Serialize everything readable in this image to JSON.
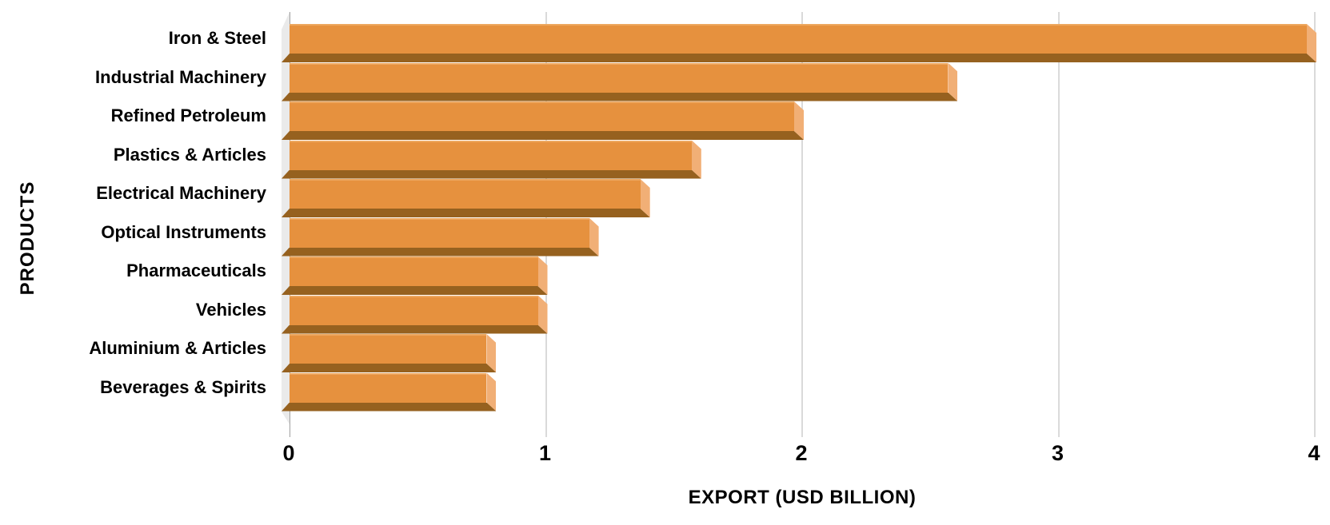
{
  "chart_data": {
    "type": "bar",
    "orientation": "horizontal",
    "style": "3d-bevel",
    "title": "",
    "xlabel": "EXPORT (USD BILLION)",
    "ylabel": "PRODUCTS",
    "categories": [
      "Iron & Steel",
      "Industrial Machinery",
      "Refined Petroleum",
      "Plastics & Articles",
      "Electrical Machinery",
      "Optical Instruments",
      "Pharmaceuticals",
      "Vehicles",
      "Aluminium & Articles",
      "Beverages & Spirits"
    ],
    "values": [
      4.0,
      2.6,
      2.0,
      1.6,
      1.4,
      1.2,
      1.0,
      1.0,
      0.8,
      0.8
    ],
    "xlim": [
      0,
      4
    ],
    "xticks": [
      0,
      1,
      2,
      3,
      4
    ],
    "grid": true,
    "legend": false,
    "colors": {
      "bar_face": "#e6913e",
      "bar_top_highlight": "#eda75f",
      "bar_bevel": "#96611f",
      "bar_end_cap": "#f1af76",
      "wall": "#eaeaea",
      "gridline": "#dadada",
      "axis_line": "#a0a0a0",
      "text": "#000000",
      "background": "#ffffff"
    }
  }
}
